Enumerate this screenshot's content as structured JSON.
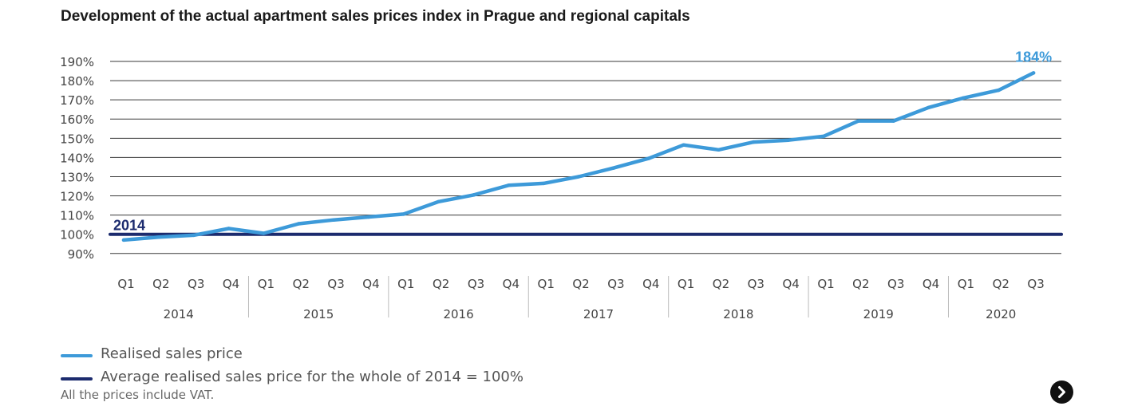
{
  "chart_data": {
    "type": "line",
    "title": "Development of the actual apartment sales prices index in Prague and regional capitals",
    "x_quarters": [
      "Q1",
      "Q2",
      "Q3",
      "Q4",
      "Q1",
      "Q2",
      "Q3",
      "Q4",
      "Q1",
      "Q2",
      "Q3",
      "Q4",
      "Q1",
      "Q2",
      "Q3",
      "Q4",
      "Q1",
      "Q2",
      "Q3",
      "Q4",
      "Q1",
      "Q2",
      "Q3",
      "Q4",
      "Q1",
      "Q2",
      "Q3"
    ],
    "x_years": [
      "2014",
      "2015",
      "2016",
      "2017",
      "2018",
      "2019",
      "2020"
    ],
    "y_ticks": [
      "190%",
      "180%",
      "170%",
      "160%",
      "150%",
      "140%",
      "130%",
      "120%",
      "110%",
      "100%",
      "90%"
    ],
    "ylim": [
      90,
      190
    ],
    "grid": true,
    "series": [
      {
        "name": "Realised sales price",
        "color": "#3d9ad9",
        "values": [
          97,
          98.5,
          99.5,
          103,
          100.5,
          105.5,
          107.5,
          109,
          110.5,
          117,
          120.5,
          125.5,
          126.5,
          130,
          134.5,
          139.5,
          146.5,
          144,
          148,
          149,
          151,
          159,
          159,
          166,
          171,
          175,
          184
        ],
        "end_label": "184%"
      },
      {
        "name": "Average realised sales price for the whole of 2014 = 100%",
        "color": "#1c2b6e",
        "constant": 100,
        "start_label": "2014"
      }
    ]
  },
  "note": "All the prices include VAT.",
  "next_icon": "chevron-right-icon"
}
